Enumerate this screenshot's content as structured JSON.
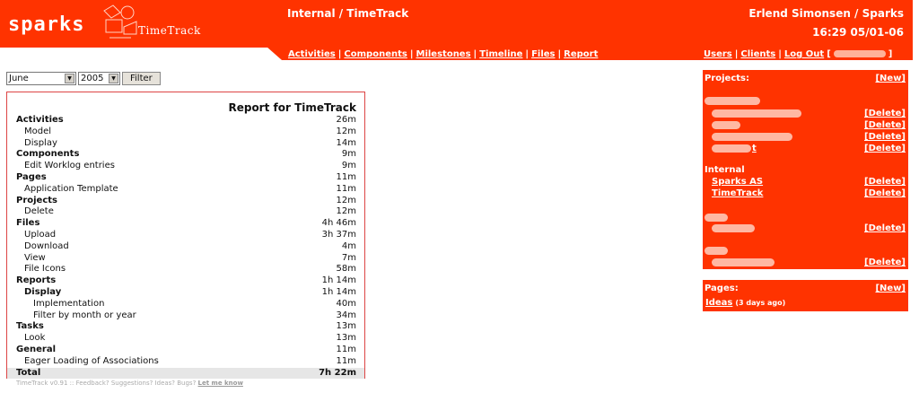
{
  "brand": {
    "name": "sparks",
    "product": "TimeTrack"
  },
  "header": {
    "title": "Internal / TimeTrack",
    "user": "Erlend Simonsen / Sparks",
    "datetime": "16:29 05/01-06",
    "nav_left": [
      "Activities",
      "Components",
      "Milestones",
      "Timeline",
      "Files",
      "Report"
    ],
    "nav_right": [
      "Users",
      "Clients",
      "Log Out"
    ]
  },
  "filter": {
    "month": "June",
    "year": "2005",
    "button": "Filter"
  },
  "report": {
    "title": "Report for TimeTrack",
    "rows": [
      {
        "label": "Activities",
        "value": "26m"
      },
      {
        "label": "Model",
        "value": "12m"
      },
      {
        "label": "Display",
        "value": "14m"
      },
      {
        "label": "Components",
        "value": "9m"
      },
      {
        "label": "Edit Worklog entries",
        "value": "9m"
      },
      {
        "label": "Pages",
        "value": "11m"
      },
      {
        "label": "Application Template",
        "value": "11m"
      },
      {
        "label": "Projects",
        "value": "12m"
      },
      {
        "label": "Delete",
        "value": "12m"
      },
      {
        "label": "Files",
        "value": "4h 46m"
      },
      {
        "label": "Upload",
        "value": "3h 37m"
      },
      {
        "label": "Download",
        "value": "4m"
      },
      {
        "label": "View",
        "value": "7m"
      },
      {
        "label": "File Icons",
        "value": "58m"
      },
      {
        "label": "Reports",
        "value": "1h 14m"
      },
      {
        "label": "Display",
        "value": "1h 14m"
      },
      {
        "label": "Implementation",
        "value": "40m"
      },
      {
        "label": "Filter by month or year",
        "value": "34m"
      },
      {
        "label": "Tasks",
        "value": "13m"
      },
      {
        "label": "Look",
        "value": "13m"
      },
      {
        "label": "General",
        "value": "11m"
      },
      {
        "label": "Eager Loading of Associations",
        "value": "11m"
      },
      {
        "label": "Total",
        "value": "7h 22m"
      }
    ]
  },
  "footer": {
    "text": "TimeTrack v0.91 :: Feedback? Suggestions? Ideas? Bugs?",
    "link": "Let me know"
  },
  "projects": {
    "heading": "Projects:",
    "new_label": "[New]",
    "delete_label": "[Delete]",
    "internal_group": "Internal",
    "internal_items": [
      "Sparks AS",
      "TimeTrack"
    ],
    "last_row_suffix": "t"
  },
  "pages": {
    "heading": "Pages:",
    "new_label": "[New]",
    "item_name": "Ideas",
    "item_ago": "(3 days ago)"
  },
  "colors": {
    "accent": "#ff3300",
    "redacted": "#ffb8a3"
  }
}
